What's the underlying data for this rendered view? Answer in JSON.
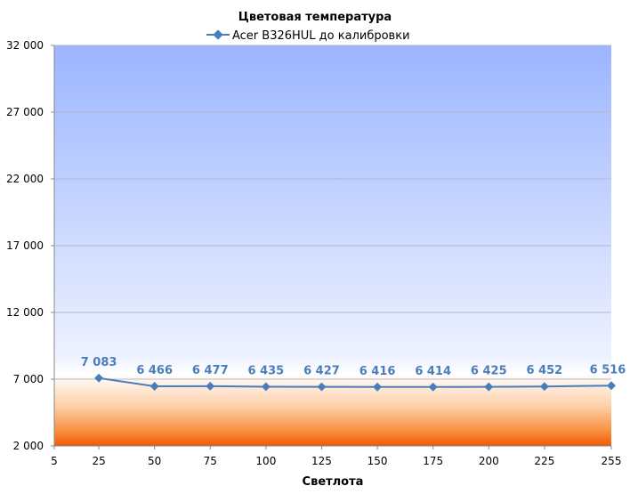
{
  "chart_data": {
    "type": "line",
    "title": "Цветовая температура",
    "xlabel": "Светлота",
    "ylabel": "",
    "xlim": [
      5,
      255
    ],
    "ylim": [
      2000,
      32000
    ],
    "x_ticks": [
      "5",
      "25",
      "50",
      "75",
      "100",
      "125",
      "150",
      "175",
      "200",
      "225",
      "255"
    ],
    "y_ticks": [
      "2 000",
      "7 000",
      "12 000",
      "17 000",
      "22 000",
      "27 000",
      "32 000"
    ],
    "y_tick_values": [
      2000,
      7000,
      12000,
      17000,
      22000,
      27000,
      32000
    ],
    "grid": true,
    "legend_position": "top",
    "series": [
      {
        "name": "Acer B326HUL до калибровки",
        "color": "#4a7ebb",
        "x": [
          25,
          50,
          75,
          100,
          125,
          150,
          175,
          200,
          225,
          255
        ],
        "values": [
          7083,
          6466,
          6477,
          6435,
          6427,
          6416,
          6414,
          6425,
          6452,
          6516
        ],
        "labels": [
          "7 083",
          "6 466",
          "6 477",
          "6 435",
          "6 427",
          "6 416",
          "6 414",
          "6 425",
          "6 452",
          "6 516"
        ]
      }
    ]
  }
}
